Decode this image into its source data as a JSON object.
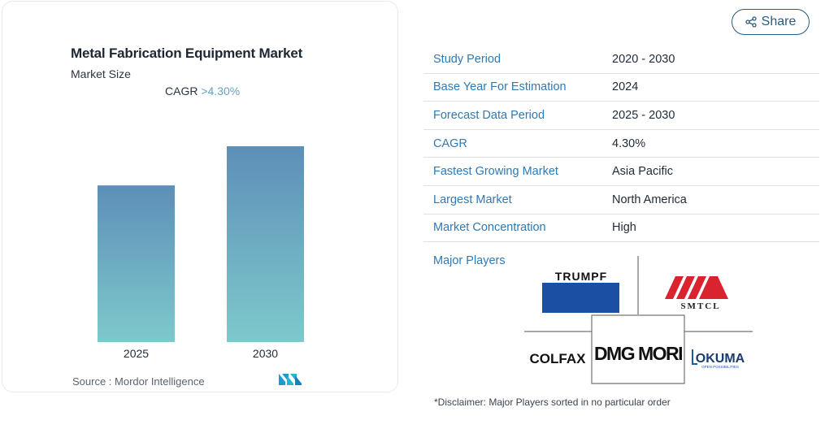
{
  "chart": {
    "title": "Metal Fabrication Equipment Market",
    "subtitle": "Market Size",
    "cagr_label": "CAGR",
    "cagr_value": ">4.30%",
    "source": "Source :  Mordor Intelligence"
  },
  "chart_data": {
    "type": "bar",
    "categories": [
      "2025",
      "2030"
    ],
    "values": [
      0.8,
      1.0
    ],
    "value_scale": "relative (no axis or data labels printed)",
    "grid": false,
    "gradient_colors": [
      "#5d8fb8",
      "#7ec9cc"
    ]
  },
  "share": {
    "label": "Share",
    "icon": "share-icon"
  },
  "info_rows": [
    {
      "label": "Study Period",
      "value": "2020 - 2030"
    },
    {
      "label": "Base Year For Estimation",
      "value": "2024"
    },
    {
      "label": "Forecast Data Period",
      "value": "2025 - 2030"
    },
    {
      "label": "CAGR",
      "value": "4.30%"
    },
    {
      "label": "Fastest Growing Market",
      "value": "Asia Pacific"
    },
    {
      "label": "Largest Market",
      "value": "North America"
    },
    {
      "label": "Market Concentration",
      "value": "High"
    }
  ],
  "players": {
    "label": "Major Players",
    "logos": [
      "TRUMPF",
      "SMTCL",
      "COLFAX",
      "DMG MORI",
      "OKUMA"
    ],
    "okuma_tagline": "OPEN POSSIBILITIES"
  },
  "disclaimer": "*Disclaimer: Major Players sorted in no particular order",
  "colors": {
    "link_blue": "#2f79b5",
    "share_border": "#2b5a7a",
    "smtcl_red": "#d9232e",
    "trumpf_blue": "#1a4fa3",
    "okuma_blue": "#1b5aa8"
  }
}
